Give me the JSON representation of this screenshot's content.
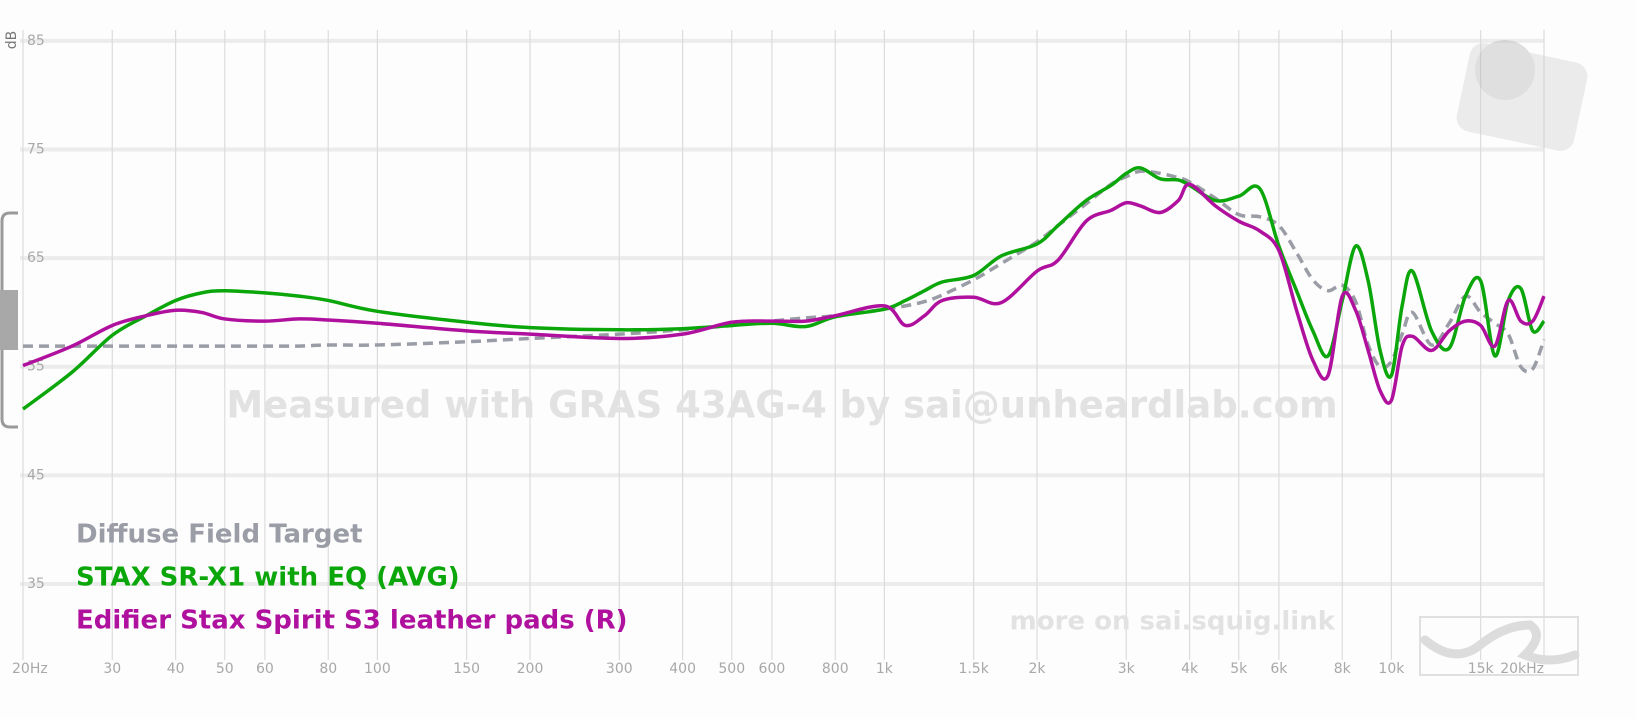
{
  "chart_data": {
    "type": "line",
    "log_x": true,
    "grid": true,
    "legend_position": "lower-left",
    "y_label": "dB",
    "watermark": "Measured with GRAS 43AG-4 by sai@unheardlab.com",
    "footer": "more on sai.squig.link",
    "xlim": [
      20,
      20000
    ],
    "ylim": [
      28,
      86
    ],
    "yticks": [
      35,
      45,
      55,
      65,
      75,
      85
    ],
    "xticks": [
      {
        "value": 20,
        "label": "20Hz"
      },
      30,
      40,
      50,
      60,
      80,
      100,
      150,
      200,
      300,
      400,
      500,
      600,
      800,
      {
        "value": 1000,
        "label": "1k"
      },
      {
        "value": 1500,
        "label": "1.5k"
      },
      {
        "value": 2000,
        "label": "2k"
      },
      {
        "value": 3000,
        "label": "3k"
      },
      {
        "value": 4000,
        "label": "4k"
      },
      {
        "value": 5000,
        "label": "5k"
      },
      {
        "value": 6000,
        "label": "6k"
      },
      {
        "value": 8000,
        "label": "8k"
      },
      {
        "value": 10000,
        "label": "10k"
      },
      {
        "value": 15000,
        "label": "15k"
      },
      {
        "value": 20000,
        "label": "20kHz"
      }
    ],
    "x": [
      20,
      25,
      30,
      35,
      40,
      45,
      50,
      60,
      70,
      80,
      100,
      150,
      200,
      300,
      400,
      500,
      600,
      700,
      800,
      1000,
      1100,
      1200,
      1300,
      1500,
      1700,
      2000,
      2200,
      2500,
      2800,
      3000,
      3200,
      3500,
      3800,
      4000,
      4500,
      5000,
      5500,
      6000,
      6500,
      7000,
      7500,
      8000,
      8500,
      9000,
      9500,
      10000,
      10500,
      11000,
      12000,
      13000,
      14000,
      15000,
      16000,
      17000,
      18000,
      19000,
      20000
    ],
    "series": [
      {
        "name": "Diffuse Field Target",
        "color": "#9a9ca6",
        "dashed": true,
        "values": [
          56.9,
          56.9,
          56.9,
          56.9,
          56.9,
          56.9,
          56.9,
          56.9,
          56.9,
          57.0,
          57.0,
          57.3,
          57.6,
          58.0,
          58.4,
          58.8,
          59.2,
          59.5,
          59.7,
          60.3,
          60.6,
          61.0,
          61.6,
          63.0,
          64.5,
          66.5,
          68.0,
          70.0,
          71.8,
          72.5,
          73.0,
          72.8,
          72.4,
          72.0,
          70.5,
          69.0,
          68.8,
          68.0,
          65.5,
          63.0,
          62.0,
          62.5,
          61.0,
          57.0,
          55.0,
          55.5,
          58.0,
          60.0,
          57.0,
          59.0,
          61.5,
          60.0,
          59.0,
          58.0,
          55.0,
          54.8,
          57.5
        ]
      },
      {
        "name": "STAX SR-X1 with EQ (AVG)",
        "color": "#0aa60a",
        "dashed": false,
        "values": [
          51.1,
          54.5,
          57.9,
          59.7,
          61.1,
          61.8,
          62.0,
          61.8,
          61.5,
          61.1,
          60.1,
          59.1,
          58.6,
          58.4,
          58.5,
          58.8,
          59.0,
          58.7,
          59.6,
          60.3,
          61.1,
          62.0,
          62.8,
          63.4,
          65.2,
          66.3,
          68.0,
          70.3,
          71.7,
          72.8,
          73.3,
          72.3,
          72.2,
          71.7,
          70.3,
          70.7,
          71.4,
          66.1,
          62.0,
          58.3,
          56.0,
          61.1,
          66.1,
          62.9,
          56.5,
          54.2,
          60.6,
          63.8,
          58.3,
          56.7,
          61.5,
          62.9,
          56.0,
          61.1,
          62.2,
          58.3,
          59.2
        ]
      },
      {
        "name": "Edifier Stax Spirit S3 leather pads (R)",
        "color": "#b0109e",
        "dashed": false,
        "values": [
          55.1,
          56.9,
          58.8,
          59.7,
          60.2,
          60.0,
          59.4,
          59.2,
          59.4,
          59.3,
          59.0,
          58.3,
          58.0,
          57.6,
          58.0,
          59.1,
          59.2,
          59.2,
          59.7,
          60.6,
          58.8,
          59.7,
          61.1,
          61.4,
          60.9,
          63.8,
          64.8,
          68.4,
          69.4,
          70.1,
          69.8,
          69.2,
          70.3,
          71.8,
          69.8,
          68.4,
          67.5,
          65.7,
          60.2,
          55.6,
          54.2,
          61.5,
          60.2,
          56.5,
          52.8,
          51.9,
          56.9,
          57.8,
          56.5,
          58.3,
          59.2,
          58.8,
          56.9,
          61.1,
          59.2,
          59.2,
          61.5
        ]
      }
    ]
  }
}
